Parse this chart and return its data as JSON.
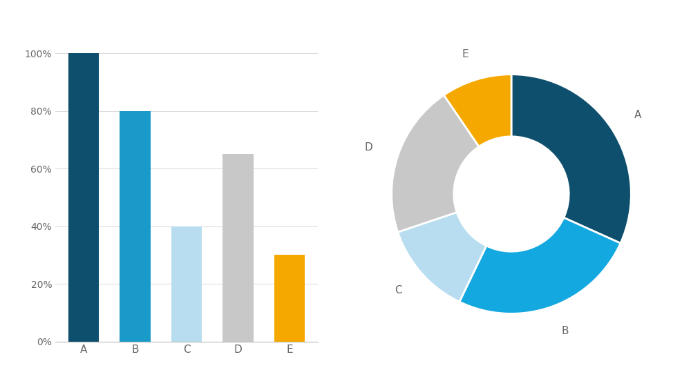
{
  "categories": [
    "A",
    "B",
    "C",
    "D",
    "E"
  ],
  "values": [
    100,
    80,
    40,
    65,
    30
  ],
  "bar_colors": [
    "#0d4f6c",
    "#1a9ac9",
    "#b8ddf0",
    "#c8c8c8",
    "#f5a800"
  ],
  "pie_colors": [
    "#0d4f6c",
    "#14a8e0",
    "#b8ddf0",
    "#c8c8c8",
    "#f5a800"
  ],
  "ytick_labels": [
    "0%",
    "20%",
    "40%",
    "60%",
    "80%",
    "100%"
  ],
  "ytick_values": [
    0,
    20,
    40,
    60,
    80,
    100
  ],
  "ylim": [
    0,
    105
  ],
  "background_color": "#ffffff",
  "text_color": "#666666",
  "label_fontsize": 11,
  "tick_fontsize": 10,
  "donut_width": 0.52,
  "label_dist": 1.22
}
